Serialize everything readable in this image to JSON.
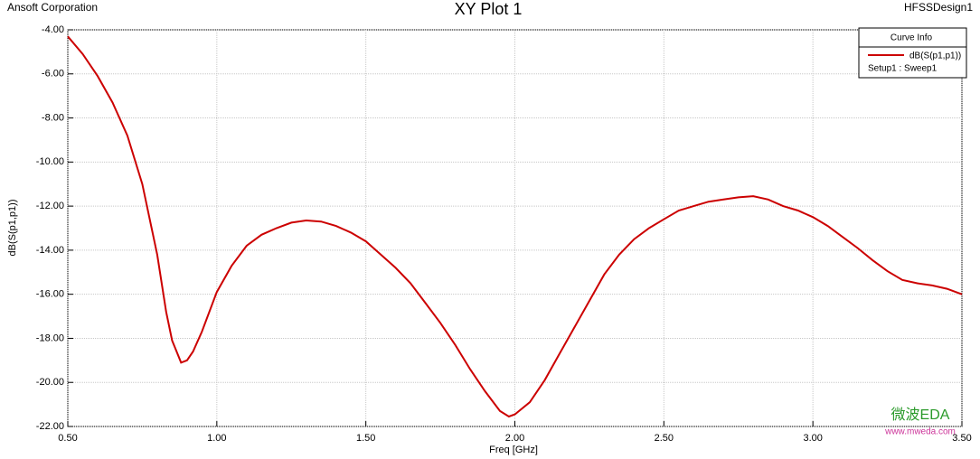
{
  "header": {
    "left": "Ansoft Corporation",
    "right": "HFSSDesign1"
  },
  "chart_data": {
    "type": "line",
    "title": "XY Plot 1",
    "x_label": "Freq [GHz]",
    "y_label": "dB(S(p1,p1))",
    "legend_title": "Curve Info",
    "legend_subtitle": "Setup1 : Sweep1",
    "x": [
      0.5,
      0.55,
      0.6,
      0.65,
      0.7,
      0.75,
      0.8,
      0.83,
      0.85,
      0.88,
      0.9,
      0.92,
      0.95,
      1.0,
      1.05,
      1.1,
      1.15,
      1.2,
      1.25,
      1.3,
      1.35,
      1.4,
      1.45,
      1.5,
      1.55,
      1.6,
      1.65,
      1.7,
      1.75,
      1.8,
      1.85,
      1.9,
      1.95,
      1.98,
      2.0,
      2.05,
      2.1,
      2.15,
      2.2,
      2.25,
      2.3,
      2.35,
      2.4,
      2.45,
      2.5,
      2.55,
      2.6,
      2.65,
      2.7,
      2.75,
      2.8,
      2.85,
      2.9,
      2.95,
      3.0,
      3.05,
      3.1,
      3.15,
      3.2,
      3.25,
      3.3,
      3.35,
      3.4,
      3.45,
      3.5
    ],
    "series": [
      {
        "name": "dB(S(p1,p1))",
        "color": "#cc0000",
        "values": [
          -4.3,
          -5.1,
          -6.1,
          -7.3,
          -8.8,
          -11.0,
          -14.2,
          -16.8,
          -18.1,
          -19.1,
          -19.0,
          -18.6,
          -17.7,
          -15.9,
          -14.7,
          -13.8,
          -13.3,
          -13.0,
          -12.75,
          -12.65,
          -12.7,
          -12.9,
          -13.2,
          -13.6,
          -14.2,
          -14.8,
          -15.5,
          -16.4,
          -17.3,
          -18.3,
          -19.4,
          -20.4,
          -21.3,
          -21.55,
          -21.45,
          -20.9,
          -19.9,
          -18.7,
          -17.5,
          -16.3,
          -15.1,
          -14.2,
          -13.5,
          -13.0,
          -12.6,
          -12.2,
          -12.0,
          -11.8,
          -11.7,
          -11.6,
          -11.55,
          -11.7,
          -12.0,
          -12.2,
          -12.5,
          -12.9,
          -13.4,
          -13.9,
          -14.45,
          -14.95,
          -15.35,
          -15.5,
          -15.6,
          -15.75,
          -16.0
        ]
      }
    ],
    "xlim": [
      0.5,
      3.5
    ],
    "xticks": [
      {
        "value": 0.5,
        "label": "0.50"
      },
      {
        "value": 1,
        "label": "1.00"
      },
      {
        "value": 1.5,
        "label": "1.50"
      },
      {
        "value": 2,
        "label": "2.00"
      },
      {
        "value": 2.5,
        "label": "2.50"
      },
      {
        "value": 3,
        "label": "3.00"
      },
      {
        "value": 3.5,
        "label": "3.50"
      }
    ],
    "ylim": [
      -22,
      -4
    ],
    "yticks": [
      {
        "value": -4,
        "label": "-4.00"
      },
      {
        "value": -6,
        "label": "-6.00"
      },
      {
        "value": -8,
        "label": "-8.00"
      },
      {
        "value": -10,
        "label": "-10.00"
      },
      {
        "value": -12,
        "label": "-12.00"
      },
      {
        "value": -14,
        "label": "-14.00"
      },
      {
        "value": -16,
        "label": "-16.00"
      },
      {
        "value": -18,
        "label": "-18.00"
      },
      {
        "value": -20,
        "label": "-20.00"
      },
      {
        "value": -22,
        "label": "-22.00"
      }
    ],
    "grid": true
  },
  "watermark": {
    "logo": "微波EDA",
    "url": "www.mweda.com"
  }
}
